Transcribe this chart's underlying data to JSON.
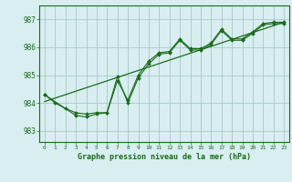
{
  "title": "Graphe pression niveau de la mer (hPa)",
  "bg_color": "#d8eef0",
  "plot_bg_color": "#d8eef0",
  "grid_color": "#b0cccc",
  "line_color": "#1a6b1a",
  "xlim": [
    -0.5,
    23.5
  ],
  "ylim": [
    982.6,
    987.5
  ],
  "yticks": [
    983,
    984,
    985,
    986,
    987
  ],
  "xticks": [
    0,
    1,
    2,
    3,
    4,
    5,
    6,
    7,
    8,
    9,
    10,
    11,
    12,
    13,
    14,
    15,
    16,
    17,
    18,
    19,
    20,
    21,
    22,
    23
  ],
  "series1_x": [
    0,
    1,
    2,
    3,
    4,
    5,
    6,
    7,
    8,
    9,
    10,
    11,
    12,
    13,
    14,
    15,
    16,
    17,
    18,
    19,
    20,
    21,
    22,
    23
  ],
  "series1_y": [
    984.3,
    984.0,
    983.8,
    983.65,
    983.6,
    983.65,
    983.65,
    984.8,
    984.1,
    985.0,
    985.5,
    985.8,
    985.85,
    986.3,
    985.95,
    985.95,
    986.15,
    986.65,
    986.3,
    986.3,
    986.55,
    986.85,
    986.9,
    986.9
  ],
  "series2_x": [
    0,
    3,
    4,
    5,
    6,
    7,
    8,
    9,
    10,
    11,
    12,
    13,
    14,
    15,
    16,
    17,
    18,
    19,
    20,
    21,
    22,
    23
  ],
  "series2_y": [
    984.3,
    983.55,
    983.5,
    983.6,
    983.65,
    984.95,
    984.0,
    984.9,
    985.4,
    985.75,
    985.8,
    986.25,
    985.9,
    985.9,
    986.1,
    986.6,
    986.25,
    986.25,
    986.5,
    986.8,
    986.85,
    986.85
  ],
  "trend_x": [
    0,
    23
  ],
  "trend_y": [
    984.05,
    986.9
  ]
}
